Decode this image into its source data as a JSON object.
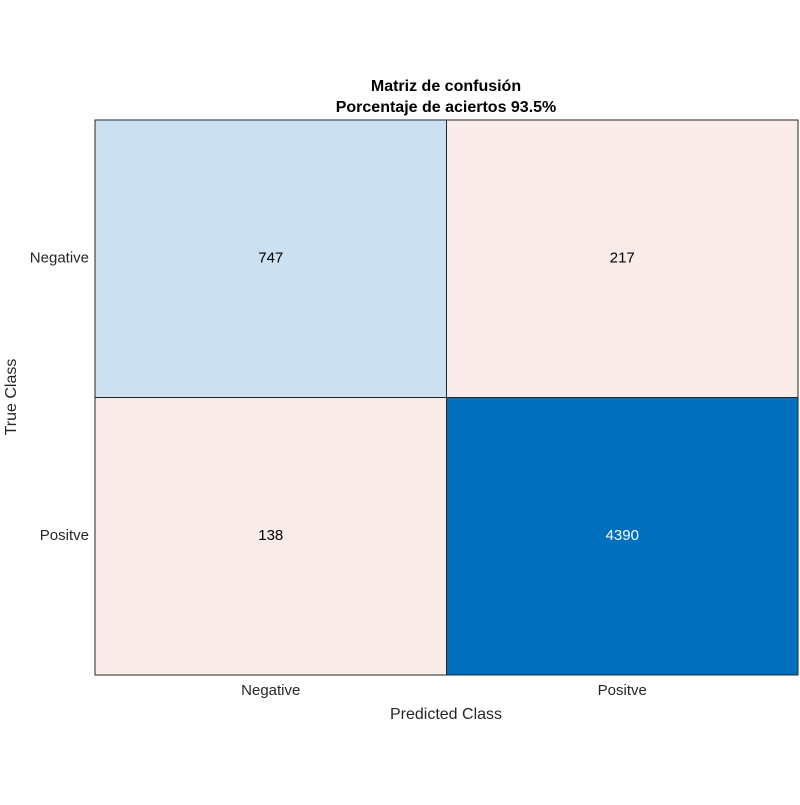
{
  "chart_data": {
    "type": "heatmap",
    "title": "Matriz de confusión",
    "subtitle": "Porcentaje de aciertos 93.5%",
    "x_label": "Predicted Class",
    "y_label": "True Class",
    "x_categories": [
      "Negative",
      "Positve"
    ],
    "y_categories": [
      "Negative",
      "Positve"
    ],
    "values": [
      [
        747,
        217
      ],
      [
        138,
        4390
      ]
    ],
    "cell_colors": [
      [
        "#cbe1f1",
        "#f9ece8"
      ],
      [
        "#f9ece8",
        "#0070bd"
      ]
    ]
  }
}
